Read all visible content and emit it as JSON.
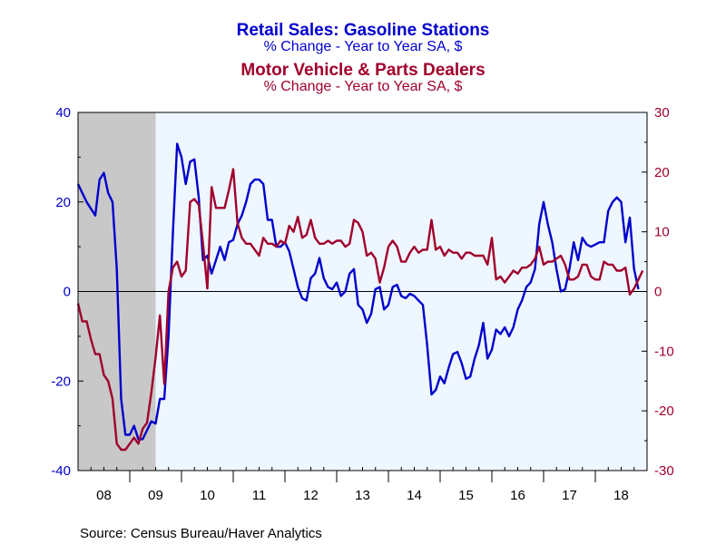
{
  "chart_data": {
    "type": "line",
    "titles": [
      {
        "text": "Retail Sales: Gasoline Stations",
        "color": "#0000cc"
      },
      {
        "text": "% Change - Year to Year    SA, $",
        "color": "#0000cc"
      },
      {
        "text": "Motor Vehicle & Parts Dealers",
        "color": "#a0002c"
      },
      {
        "text": "% Change - Year to Year    SA, $",
        "color": "#a0002c"
      }
    ],
    "source": "Source:  Census Bureau/Haver Analytics",
    "x_range": [
      2008.0,
      2019.0
    ],
    "x_ticks": [
      "08",
      "09",
      "10",
      "11",
      "12",
      "13",
      "14",
      "15",
      "16",
      "17",
      "18"
    ],
    "y_left": {
      "range": [
        -40,
        40
      ],
      "ticks": [
        -40,
        -20,
        0,
        20,
        40
      ],
      "color": "#0000cc"
    },
    "y_right": {
      "range": [
        -30,
        30
      ],
      "ticks": [
        -30,
        -20,
        -10,
        0,
        10,
        20,
        30
      ],
      "color": "#a0002c"
    },
    "recession": {
      "start": 2008.0,
      "end": 2009.5
    },
    "plot_background": "#eef6ff",
    "recession_color": "#c8c8c8",
    "series": [
      {
        "name": "Retail Sales: Gasoline Stations",
        "axis": "left",
        "color": "#0000cc",
        "start": 2008.0,
        "step": 0.0833333,
        "values": [
          24,
          22,
          20,
          18.5,
          17,
          25,
          26.5,
          22,
          20,
          5,
          -24,
          -32,
          -32,
          -30,
          -33,
          -33,
          -31,
          -29,
          -29.5,
          -24,
          -24,
          -10,
          13,
          33,
          30,
          24,
          29,
          29.5,
          21,
          7,
          8,
          4,
          7,
          10,
          7,
          11,
          11.5,
          15,
          17,
          20,
          24,
          25,
          25,
          24,
          16,
          16,
          10,
          10,
          11,
          9,
          5,
          1,
          -1.5,
          -2,
          3,
          4,
          7.5,
          3,
          1,
          0.5,
          2,
          -1,
          0,
          4,
          5,
          -3,
          -4,
          -7,
          -5,
          0.5,
          1,
          -4,
          -3,
          1,
          1.5,
          -1,
          -1.5,
          -0.5,
          -1,
          -2,
          -3,
          -12,
          -23,
          -22,
          -19,
          -20.5,
          -17,
          -14,
          -13.5,
          -16,
          -19.5,
          -19,
          -15,
          -12,
          -7,
          -15,
          -13,
          -8.5,
          -9.5,
          -8,
          -10,
          -8,
          -4,
          -2,
          1,
          2,
          5,
          15,
          20,
          15,
          11,
          5,
          0,
          0.5,
          5,
          11,
          7,
          12,
          10.5,
          10,
          10.5,
          11,
          11,
          18,
          20,
          21,
          20,
          11,
          16.5,
          5,
          0.5
        ]
      },
      {
        "name": "Motor Vehicle & Parts Dealers",
        "axis": "right",
        "color": "#a0002c",
        "start": 2008.0,
        "step": 0.0833333,
        "values": [
          -2,
          -5,
          -5,
          -8,
          -10.5,
          -10.5,
          -14,
          -15,
          -18,
          -25.5,
          -26.5,
          -26.5,
          -25.5,
          -24.5,
          -25.5,
          -23,
          -22,
          -17,
          -11,
          -4,
          -15.5,
          0,
          4,
          5,
          2.5,
          3.5,
          15,
          15.5,
          14.5,
          8,
          0.5,
          17.5,
          14,
          14,
          14,
          17,
          20.5,
          11.5,
          9,
          8,
          8,
          7,
          6,
          9,
          8,
          8,
          7.5,
          8.5,
          8,
          11,
          10,
          12.5,
          9,
          9.5,
          12,
          9,
          8,
          8,
          8.5,
          8,
          8.5,
          8.5,
          7.5,
          8,
          12,
          11.5,
          10,
          6,
          6.5,
          5.5,
          1.5,
          4,
          7.5,
          8.5,
          7.5,
          5,
          5,
          6.5,
          7.5,
          6.5,
          7,
          7,
          12,
          7,
          7.5,
          6,
          7,
          6.5,
          6.5,
          5.5,
          6.5,
          6.5,
          6,
          6,
          6,
          4.5,
          9,
          2,
          2.5,
          1.5,
          2.5,
          3.5,
          3,
          4,
          4,
          4.5,
          5.5,
          7.5,
          4.5,
          5,
          5,
          5.5,
          6,
          4.5,
          2,
          2,
          2.5,
          4.5,
          4.5,
          2.5,
          2,
          2,
          5,
          4.5,
          4.5,
          3.5,
          3.5,
          4,
          -0.5,
          0.5,
          2,
          3.5
        ]
      }
    ]
  }
}
